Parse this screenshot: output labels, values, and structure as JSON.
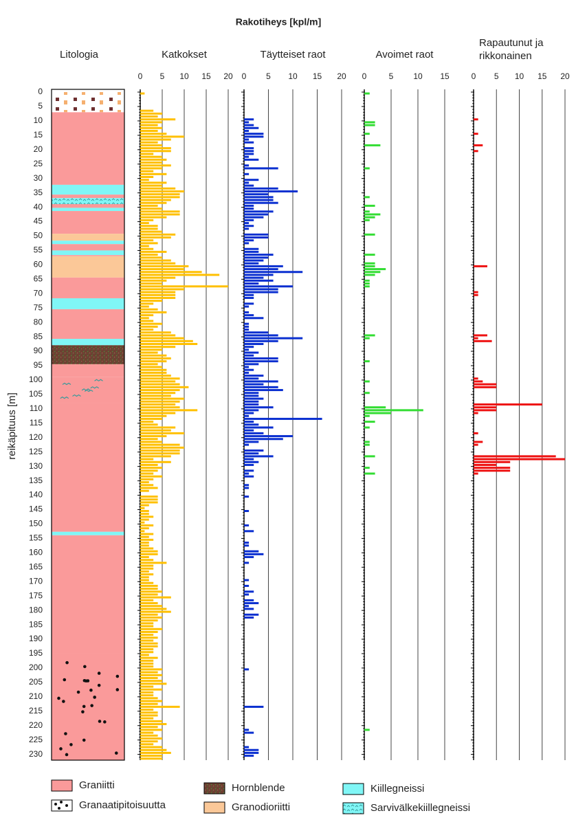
{
  "chart_data": {
    "type": "bar",
    "title": "Rakotiheys [kpl/m]",
    "ylabel": "reikäpituus [m]",
    "ylim": [
      0,
      232
    ],
    "yticks": [
      0,
      5,
      10,
      15,
      20,
      25,
      30,
      35,
      40,
      45,
      50,
      55,
      60,
      65,
      70,
      75,
      80,
      85,
      90,
      95,
      100,
      105,
      110,
      115,
      120,
      125,
      130,
      135,
      140,
      145,
      150,
      155,
      160,
      165,
      170,
      175,
      180,
      185,
      190,
      195,
      200,
      205,
      210,
      215,
      220,
      225,
      230
    ],
    "lithology_title": "Litologia",
    "legend": [
      {
        "name": "Graniitti",
        "color": "#fa9a9a"
      },
      {
        "name": "Granaatipitoisuutta",
        "color": "#ffffff"
      },
      {
        "name": "Hornblende",
        "color": "#6e4032"
      },
      {
        "name": "Granodioriitti",
        "color": "#fbc898"
      },
      {
        "name": "Kiillegneissi",
        "color": "#80f6f6"
      },
      {
        "name": "Sarvivälkekiillegneissi",
        "color": "#80f6f6"
      }
    ],
    "lithology": [
      {
        "from": 0,
        "to": 7,
        "rock": null
      },
      {
        "from": 7,
        "to": 32.2,
        "rock": 0
      },
      {
        "from": 32.2,
        "to": 35.6,
        "rock": 4
      },
      {
        "from": 35.6,
        "to": 36.8,
        "rock": 0
      },
      {
        "from": 36.8,
        "to": 38.9,
        "rock": 5
      },
      {
        "from": 38.9,
        "to": 40.2,
        "rock": 0
      },
      {
        "from": 40.2,
        "to": 41.3,
        "rock": 4
      },
      {
        "from": 41.3,
        "to": 49.2,
        "rock": 0
      },
      {
        "from": 49.2,
        "to": 51.6,
        "rock": 3
      },
      {
        "from": 51.6,
        "to": 52.8,
        "rock": 4
      },
      {
        "from": 52.8,
        "to": 55,
        "rock": 0
      },
      {
        "from": 55,
        "to": 56.6,
        "rock": 4
      },
      {
        "from": 56.6,
        "to": 57,
        "rock": 0
      },
      {
        "from": 57,
        "to": 64.4,
        "rock": 3
      },
      {
        "from": 64.4,
        "to": 71.6,
        "rock": 0
      },
      {
        "from": 71.6,
        "to": 75.4,
        "rock": 4
      },
      {
        "from": 75.4,
        "to": 85.7,
        "rock": 0
      },
      {
        "from": 85.7,
        "to": 87.9,
        "rock": 4
      },
      {
        "from": 87.9,
        "to": 94.5,
        "rock": 2
      },
      {
        "from": 94.5,
        "to": 99,
        "rock": 0
      },
      {
        "from": 99,
        "to": 108,
        "rock": 0,
        "overlay": 5
      },
      {
        "from": 108,
        "to": 152.7,
        "rock": 0
      },
      {
        "from": 152.7,
        "to": 153.9,
        "rock": 4
      },
      {
        "from": 153.9,
        "to": 195,
        "rock": 0
      },
      {
        "from": 195,
        "to": 232,
        "rock": 0,
        "overlay": 1
      }
    ],
    "x": [
      0,
      1,
      2,
      3,
      4,
      5,
      6,
      7,
      8,
      9,
      10,
      11,
      12,
      13,
      14,
      15,
      16,
      17,
      18,
      19,
      20,
      21,
      22,
      23,
      24,
      25,
      26,
      27,
      28,
      29,
      30,
      31,
      32,
      33,
      34,
      35,
      36,
      37,
      38,
      39,
      40,
      41,
      42,
      43,
      44,
      45,
      46,
      47,
      48,
      49,
      50,
      51,
      52,
      53,
      54,
      55,
      56,
      57,
      58,
      59,
      60,
      61,
      62,
      63,
      64,
      65,
      66,
      67,
      68,
      69,
      70,
      71,
      72,
      73,
      74,
      75,
      76,
      77,
      78,
      79,
      80,
      81,
      82,
      83,
      84,
      85,
      86,
      87,
      88,
      89,
      90,
      91,
      92,
      93,
      94,
      95,
      96,
      97,
      98,
      99,
      100,
      101,
      102,
      103,
      104,
      105,
      106,
      107,
      108,
      109,
      110,
      111,
      112,
      113,
      114,
      115,
      116,
      117,
      118,
      119,
      120,
      121,
      122,
      123,
      124,
      125,
      126,
      127,
      128,
      129,
      130,
      131,
      132,
      133,
      134,
      135,
      136,
      137,
      138,
      139,
      140,
      141,
      142,
      143,
      144,
      145,
      146,
      147,
      148,
      149,
      150,
      151,
      152,
      153,
      154,
      155,
      156,
      157,
      158,
      159,
      160,
      161,
      162,
      163,
      164,
      165,
      166,
      167,
      168,
      169,
      170,
      171,
      172,
      173,
      174,
      175,
      176,
      177,
      178,
      179,
      180,
      181,
      182,
      183,
      184,
      185,
      186,
      187,
      188,
      189,
      190,
      191,
      192,
      193,
      194,
      195,
      196,
      197,
      198,
      199,
      200,
      201,
      202,
      203,
      204,
      205,
      206,
      207,
      208,
      209,
      210,
      211,
      212,
      213,
      214,
      215,
      216,
      217,
      218,
      219,
      220,
      221,
      222,
      223,
      224,
      225,
      226,
      227,
      228,
      229,
      230,
      231
    ],
    "series": [
      {
        "name": "Katkokset",
        "color": "#ffc000",
        "xlim": [
          0,
          20
        ],
        "xticks": [
          0,
          5,
          10,
          15,
          20
        ],
        "values": [
          1,
          0,
          0,
          0,
          0,
          0,
          3,
          5,
          4,
          8,
          5,
          4,
          5,
          4,
          6,
          10,
          7,
          4,
          5,
          7,
          7,
          3,
          5,
          6,
          5,
          7,
          5,
          3,
          6,
          3,
          2,
          6,
          5,
          8,
          10,
          9,
          9,
          7,
          6,
          4,
          5,
          9,
          9,
          6,
          3,
          2,
          4,
          4,
          5,
          8,
          7,
          3,
          4,
          2,
          3,
          6,
          4,
          5,
          7,
          8,
          11,
          10,
          14,
          18,
          8,
          6,
          5,
          20,
          10,
          8,
          8,
          8,
          5,
          3,
          2,
          4,
          6,
          3,
          2,
          3,
          5,
          4,
          3,
          7,
          8,
          10,
          12,
          13,
          8,
          5,
          4,
          6,
          7,
          6,
          4,
          5,
          6,
          6,
          7,
          9,
          8,
          9,
          11,
          9,
          8,
          7,
          10,
          9,
          8,
          9,
          13,
          8,
          6,
          5,
          3,
          4,
          8,
          7,
          10,
          6,
          4,
          5,
          9,
          10,
          9,
          9,
          7,
          3,
          7,
          4,
          5,
          4,
          3,
          5,
          3,
          2,
          3,
          4,
          2,
          0,
          4,
          4,
          4,
          2,
          1,
          2,
          2,
          3,
          2,
          1,
          3,
          2,
          1,
          3,
          2,
          3,
          2,
          2,
          3,
          4,
          4,
          2,
          3,
          6,
          3,
          3,
          2,
          3,
          2,
          2,
          3,
          4,
          4,
          5,
          4,
          7,
          3,
          4,
          5,
          6,
          7,
          4,
          5,
          4,
          3,
          3,
          5,
          4,
          3,
          4,
          3,
          4,
          4,
          3,
          3,
          2,
          4,
          3,
          3,
          3,
          5,
          4,
          5,
          4,
          5,
          6,
          3,
          5,
          3,
          3,
          4,
          5,
          4,
          9,
          3,
          4,
          4,
          3,
          5,
          6,
          4,
          5,
          3,
          4,
          5,
          4,
          3,
          5,
          6,
          7,
          5,
          5
        ]
      },
      {
        "name": "Täytteiset raot",
        "color": "#0a2fd0",
        "xlim": [
          0,
          20
        ],
        "xticks": [
          0,
          5,
          10,
          15,
          20
        ],
        "values": [
          0,
          0,
          0,
          0,
          0,
          0,
          0,
          0,
          0,
          2,
          1,
          2,
          3,
          1,
          4,
          4,
          1,
          2,
          0,
          2,
          2,
          2,
          1,
          3,
          0,
          1,
          7,
          0,
          1,
          0,
          3,
          1,
          2,
          7,
          11,
          5,
          6,
          6,
          7,
          2,
          2,
          6,
          5,
          4,
          2,
          1,
          2,
          1,
          0,
          5,
          5,
          2,
          1,
          0,
          3,
          3,
          6,
          5,
          4,
          3,
          8,
          7,
          12,
          6,
          4,
          6,
          3,
          10,
          7,
          7,
          2,
          2,
          0,
          2,
          1,
          0,
          1,
          2,
          4,
          0,
          1,
          1,
          1,
          5,
          7,
          12,
          7,
          4,
          2,
          1,
          3,
          2,
          7,
          7,
          3,
          1,
          2,
          1,
          4,
          3,
          7,
          4,
          7,
          8,
          3,
          3,
          4,
          3,
          3,
          6,
          3,
          2,
          1,
          16,
          2,
          3,
          6,
          2,
          4,
          10,
          8,
          3,
          1,
          0,
          4,
          3,
          6,
          2,
          3,
          2,
          0,
          2,
          1,
          2,
          0,
          0,
          1,
          1,
          0,
          0,
          1,
          0,
          0,
          0,
          0,
          1,
          0,
          0,
          0,
          0,
          1,
          0,
          2,
          0,
          0,
          0,
          1,
          1,
          0,
          3,
          4,
          2,
          0,
          1,
          0,
          0,
          0,
          0,
          0,
          1,
          0,
          1,
          0,
          2,
          1,
          0,
          2,
          3,
          1,
          2,
          0,
          3,
          2,
          0,
          0,
          0,
          0,
          0,
          0,
          0,
          0,
          0,
          0,
          0,
          0,
          0,
          0,
          0,
          0,
          0,
          1,
          0,
          0,
          0,
          0,
          0,
          0,
          0,
          0,
          0,
          0,
          0,
          0,
          4,
          0,
          0,
          0,
          0,
          0,
          0,
          0,
          1,
          2,
          0,
          0,
          0,
          0,
          1,
          3,
          3,
          2,
          0
        ]
      },
      {
        "name": "Avoimet raot",
        "color": "#33dd33",
        "xlim": [
          0,
          15
        ],
        "xticks": [
          0,
          5,
          10,
          15
        ],
        "values": [
          1,
          0,
          0,
          0,
          0,
          0,
          0,
          0,
          0,
          0,
          2,
          2,
          0,
          0,
          1,
          0,
          0,
          0,
          3,
          0,
          0,
          0,
          0,
          0,
          0,
          0,
          1,
          0,
          0,
          0,
          0,
          0,
          0,
          0,
          0,
          0,
          1,
          0,
          0,
          2,
          0,
          1,
          3,
          2,
          1,
          0,
          0,
          0,
          0,
          2,
          0,
          0,
          0,
          0,
          0,
          0,
          2,
          0,
          0,
          2,
          2,
          4,
          3,
          2,
          0,
          1,
          1,
          1,
          0,
          0,
          0,
          0,
          0,
          0,
          0,
          0,
          0,
          0,
          0,
          0,
          0,
          0,
          0,
          0,
          2,
          1,
          0,
          0,
          0,
          0,
          0,
          0,
          0,
          1,
          0,
          0,
          0,
          0,
          0,
          0,
          1,
          0,
          0,
          0,
          1,
          0,
          0,
          0,
          0,
          4,
          11,
          5,
          1,
          0,
          2,
          0,
          1,
          0,
          0,
          0,
          0,
          1,
          1,
          0,
          0,
          0,
          2,
          0,
          0,
          0,
          1,
          0,
          2,
          0,
          0,
          0,
          0,
          0,
          0,
          0,
          0,
          0,
          0,
          0,
          0,
          0,
          0,
          0,
          0,
          0,
          0,
          0,
          0,
          0,
          0,
          0,
          0,
          0,
          0,
          0,
          0,
          0,
          0,
          0,
          0,
          0,
          0,
          0,
          0,
          0,
          0,
          0,
          0,
          0,
          0,
          0,
          0,
          0,
          0,
          0,
          0,
          0,
          0,
          0,
          0,
          0,
          0,
          0,
          0,
          0,
          0,
          0,
          0,
          0,
          0,
          0,
          0,
          0,
          0,
          0,
          0,
          0,
          0,
          0,
          0,
          0,
          0,
          0,
          0,
          0,
          0,
          0,
          0,
          0,
          0,
          0,
          0,
          0,
          0,
          0,
          0,
          1,
          0,
          0,
          0,
          0,
          0,
          0,
          0,
          0,
          0,
          0
        ]
      },
      {
        "name": "Rapautunut ja rikkonainen",
        "color": "#ee1111",
        "xlim": [
          0,
          20
        ],
        "xticks": [
          0,
          5,
          10,
          15,
          20
        ],
        "values": [
          0,
          0,
          0,
          0,
          0,
          0,
          0,
          0,
          0,
          1,
          0,
          0,
          0,
          0,
          1,
          0,
          0,
          0,
          2,
          0,
          1,
          0,
          0,
          0,
          0,
          0,
          0,
          0,
          0,
          0,
          0,
          0,
          0,
          0,
          0,
          0,
          0,
          0,
          0,
          0,
          0,
          0,
          0,
          0,
          0,
          0,
          0,
          0,
          0,
          0,
          0,
          0,
          0,
          0,
          0,
          0,
          0,
          0,
          0,
          0,
          3,
          0,
          0,
          0,
          0,
          0,
          0,
          0,
          0,
          1,
          1,
          0,
          0,
          0,
          0,
          0,
          0,
          0,
          0,
          0,
          0,
          0,
          0,
          0,
          3,
          1,
          4,
          0,
          0,
          0,
          0,
          0,
          0,
          0,
          0,
          0,
          0,
          0,
          0,
          1,
          2,
          5,
          5,
          0,
          0,
          0,
          0,
          0,
          15,
          5,
          5,
          1,
          0,
          0,
          0,
          0,
          0,
          0,
          1,
          0,
          0,
          2,
          1,
          0,
          0,
          0,
          18,
          20,
          8,
          5,
          8,
          8,
          1,
          0,
          0,
          0,
          0,
          0,
          0,
          0,
          0,
          0,
          0,
          0,
          0,
          0,
          0,
          0,
          0,
          0,
          0,
          0,
          0,
          0,
          0,
          0,
          0,
          0,
          0,
          0,
          0,
          0,
          0,
          0,
          0,
          0,
          0,
          0,
          0,
          0,
          0,
          0,
          0,
          0,
          0,
          0,
          0,
          0,
          0,
          0,
          0,
          0,
          0,
          0,
          0,
          0,
          0,
          0,
          0,
          0,
          0,
          0,
          0,
          0,
          0,
          0,
          0,
          0,
          0,
          0,
          0,
          0,
          0,
          0,
          0,
          0,
          0,
          0,
          0,
          0,
          0,
          0,
          0,
          0,
          0,
          0,
          0,
          0,
          0,
          0,
          0,
          0,
          0,
          0,
          0,
          0,
          0,
          0,
          0,
          0,
          0,
          0
        ]
      }
    ]
  }
}
